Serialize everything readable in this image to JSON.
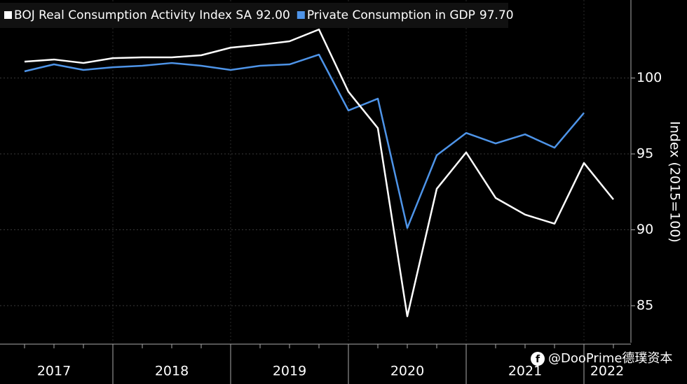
{
  "chart_data": {
    "type": "line",
    "y_axis_title": "Index (2015=100)",
    "x_labels": [
      "2017",
      "2018",
      "2019",
      "2020",
      "2021",
      "2022"
    ],
    "series": [
      {
        "name": "BOJ Real Consumption Activity Index SA",
        "last_value_label": "92.00",
        "color": "#ffffff",
        "values": [
          101.08,
          101.22,
          100.99,
          101.31,
          101.36,
          101.36,
          101.5,
          102.0,
          102.19,
          102.42,
          103.2,
          99.1,
          96.7,
          84.3,
          92.7,
          95.1,
          92.1,
          91.0,
          90.4,
          94.4,
          92.0
        ]
      },
      {
        "name": "Private Consumption in GDP",
        "last_value_label": "97.70",
        "color": "#4e94e8",
        "values": [
          100.44,
          100.9,
          100.53,
          100.71,
          100.81,
          100.99,
          100.81,
          100.53,
          100.81,
          100.9,
          101.54,
          97.86,
          98.64,
          90.12,
          94.91,
          96.38,
          95.69,
          96.29,
          95.41,
          97.7,
          null
        ]
      }
    ],
    "ylim": [
      82.56,
      105.14
    ],
    "yticks": [
      85,
      90,
      95,
      100
    ],
    "grid": true,
    "watermark": "@DooPrime德璞资本"
  }
}
